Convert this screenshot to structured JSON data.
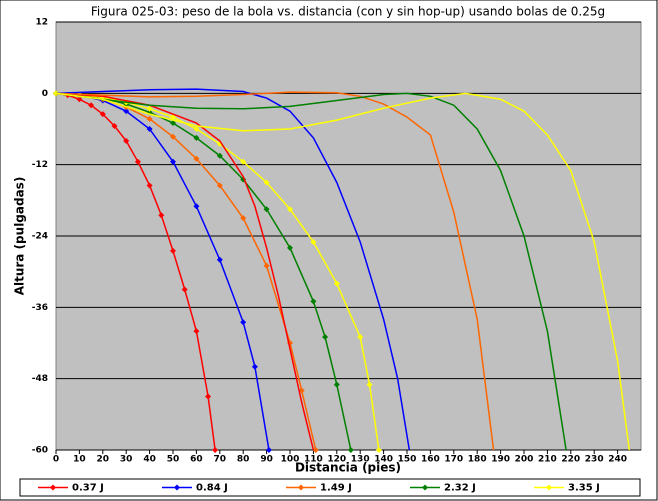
{
  "chart_data": {
    "type": "line",
    "title": "Figura 025-03: peso de la bola vs. distancia (con y sin hop-up) usando bolas de 0.25g",
    "x_label": "Distancia (pies)",
    "y_label": "Altura (pulgadas)",
    "xlim": [
      0,
      250
    ],
    "xticks": [
      0,
      10,
      20,
      30,
      40,
      50,
      60,
      70,
      80,
      90,
      100,
      110,
      120,
      130,
      140,
      150,
      160,
      170,
      180,
      190,
      200,
      210,
      220,
      230,
      240
    ],
    "ylim": [
      -60,
      12
    ],
    "yticks": [
      12,
      0,
      -12,
      -24,
      -36,
      -48,
      -60
    ],
    "grid": true,
    "series": [
      {
        "name": "0.37 J",
        "color": "#ff0000",
        "marker": true,
        "x": [
          0,
          5,
          10,
          15,
          20,
          25,
          30,
          35,
          40,
          45,
          50,
          55,
          60,
          65,
          68
        ],
        "values": [
          0,
          -0.3,
          -1,
          -2,
          -3.5,
          -5.5,
          -8,
          -11.5,
          -15.5,
          -20.5,
          -26.5,
          -33,
          -40,
          -51,
          -60
        ]
      },
      {
        "name": "0.84 J",
        "color": "#0000ff",
        "marker": true,
        "x": [
          0,
          10,
          20,
          30,
          40,
          50,
          60,
          70,
          80,
          85,
          91
        ],
        "values": [
          0,
          -0.3,
          -1.2,
          -3,
          -6,
          -11.5,
          -19,
          -28,
          -38.5,
          -46,
          -60
        ]
      },
      {
        "name": "1.49 J",
        "color": "#ff6600",
        "marker": true,
        "x": [
          0,
          10,
          20,
          30,
          40,
          50,
          60,
          70,
          80,
          90,
          100,
          105,
          111
        ],
        "values": [
          0,
          -0.3,
          -1,
          -2.3,
          -4.3,
          -7.3,
          -11,
          -15.5,
          -21,
          -29,
          -42,
          -50,
          -60
        ]
      },
      {
        "name": "2.32 J",
        "color": "#008000",
        "marker": true,
        "x": [
          0,
          10,
          20,
          30,
          40,
          50,
          60,
          70,
          80,
          90,
          100,
          110,
          115,
          120,
          126
        ],
        "values": [
          0,
          -0.2,
          -0.8,
          -1.8,
          -3.2,
          -5,
          -7.5,
          -10.5,
          -14.5,
          -19.5,
          -26,
          -35,
          -41,
          -49,
          -60
        ]
      },
      {
        "name": "3.35 J",
        "color": "#ffff00",
        "marker": true,
        "x": [
          0,
          10,
          20,
          30,
          40,
          50,
          60,
          70,
          80,
          90,
          100,
          110,
          120,
          130,
          134,
          138
        ],
        "values": [
          0,
          -0.2,
          -0.7,
          -1.5,
          -2.6,
          -4,
          -6,
          -8.5,
          -11.5,
          -15,
          -19.5,
          -25,
          -32,
          -41,
          -49,
          -60
        ]
      },
      {
        "color": "#ff0000",
        "marker": false,
        "x": [
          0,
          20,
          40,
          60,
          70,
          80,
          85,
          90,
          95,
          100,
          105,
          110
        ],
        "values": [
          0,
          -0.5,
          -2,
          -5,
          -8,
          -14,
          -19,
          -26,
          -34,
          -43,
          -52,
          -60
        ]
      },
      {
        "color": "#0000ff",
        "marker": false,
        "x": [
          0,
          20,
          40,
          60,
          80,
          90,
          100,
          110,
          120,
          130,
          140,
          146,
          151
        ],
        "values": [
          0,
          0.3,
          0.6,
          0.7,
          0.3,
          -0.8,
          -3,
          -7.5,
          -15,
          -25,
          -38,
          -48,
          -60
        ]
      },
      {
        "color": "#ff6600",
        "marker": false,
        "x": [
          0,
          20,
          40,
          60,
          80,
          100,
          120,
          130,
          140,
          150,
          160,
          170,
          180,
          187
        ],
        "values": [
          0,
          -0.3,
          -0.6,
          -0.5,
          -0.2,
          0.2,
          0.1,
          -0.5,
          -1.8,
          -4,
          -7,
          -20,
          -38,
          -60
        ]
      },
      {
        "color": "#008000",
        "marker": false,
        "x": [
          0,
          20,
          40,
          60,
          80,
          100,
          120,
          140,
          150,
          160,
          170,
          180,
          190,
          200,
          210,
          218
        ],
        "values": [
          0,
          -1,
          -2,
          -2.5,
          -2.6,
          -2.2,
          -1.2,
          -0.2,
          0,
          -0.5,
          -2,
          -6,
          -13,
          -24,
          -40,
          -60
        ]
      },
      {
        "color": "#ffff00",
        "marker": false,
        "x": [
          0,
          20,
          40,
          60,
          80,
          100,
          120,
          140,
          160,
          175,
          190,
          200,
          210,
          220,
          230,
          240,
          245
        ],
        "values": [
          0,
          -1,
          -3.5,
          -5.5,
          -6.3,
          -6,
          -4.5,
          -2.5,
          -0.8,
          0,
          -1,
          -3,
          -7,
          -13,
          -25,
          -45,
          -60
        ]
      }
    ]
  }
}
